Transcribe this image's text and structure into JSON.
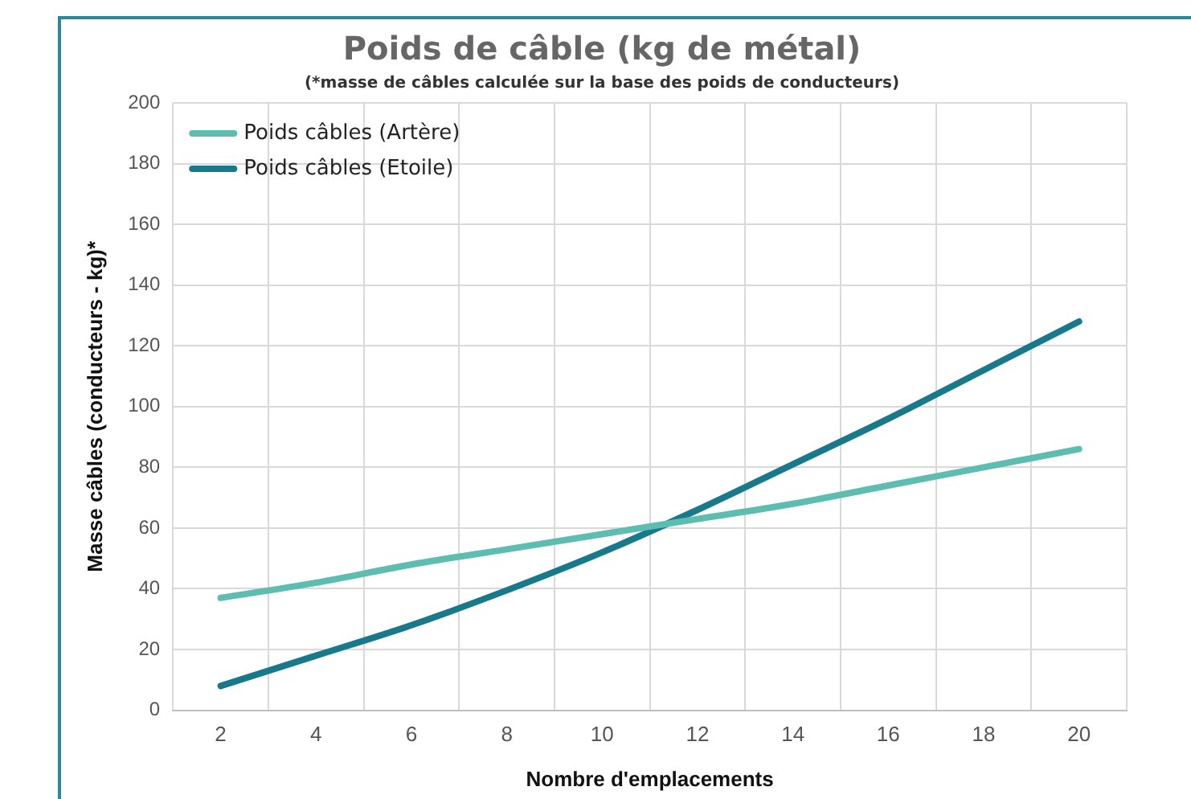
{
  "chart_data": {
    "type": "line",
    "title": "Poids de câble (kg de métal)",
    "subtitle": "(*masse de câbles calculée sur la base des poids de conducteurs)",
    "xlabel": "Nombre d'emplacements",
    "ylabel": "Masse câbles (conducteurs - kg)*",
    "categories": [
      "2",
      "4",
      "6",
      "8",
      "10",
      "12",
      "14",
      "16",
      "18",
      "20"
    ],
    "series": [
      {
        "name": "Poids câbles (Artère)",
        "color": "#5cbdb0",
        "values": [
          37,
          42,
          48,
          53,
          58,
          63,
          68,
          74,
          80,
          86
        ]
      },
      {
        "name": "Poids câbles (Etoile)",
        "color": "#17798a",
        "values": [
          8,
          18,
          28,
          39.5,
          52,
          66,
          81,
          96,
          112,
          128
        ]
      }
    ],
    "ylim": [
      0,
      200
    ],
    "yticks": [
      0,
      20,
      40,
      60,
      80,
      100,
      120,
      140,
      160,
      180,
      200
    ],
    "grid": true,
    "legend": "top left",
    "marker": "none",
    "line_style": "solid"
  }
}
